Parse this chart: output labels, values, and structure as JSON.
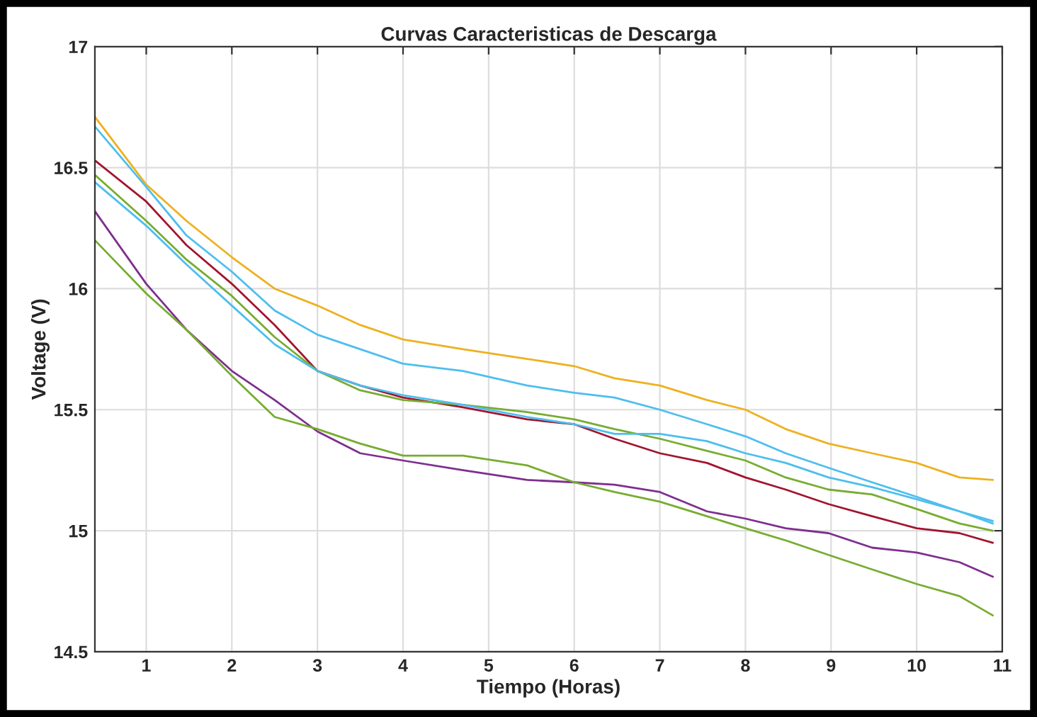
{
  "chart_data": {
    "type": "line",
    "title": "Curvas Caracteristicas de Descarga",
    "xlabel": "Tiempo (Horas)",
    "ylabel": "Voltage (V)",
    "x": [
      0.4,
      1,
      1.47,
      2,
      2.5,
      3,
      3.5,
      4,
      4.7,
      5.45,
      6,
      6.47,
      7,
      7.55,
      8,
      8.47,
      8.97,
      9.48,
      10,
      10.5,
      10.89
    ],
    "series": [
      {
        "color": "#edb120",
        "values": [
          16.71,
          16.43,
          16.28,
          16.13,
          16.0,
          15.93,
          15.85,
          15.79,
          15.75,
          15.71,
          15.68,
          15.63,
          15.6,
          15.54,
          15.5,
          15.42,
          15.36,
          15.32,
          15.28,
          15.22,
          15.21
        ]
      },
      {
        "color": "#4dbeee",
        "values": [
          16.67,
          16.42,
          16.22,
          16.07,
          15.91,
          15.81,
          15.75,
          15.69,
          15.66,
          15.6,
          15.57,
          15.55,
          15.5,
          15.44,
          15.39,
          15.32,
          15.26,
          15.2,
          15.14,
          15.08,
          15.04
        ]
      },
      {
        "color": "#a2142f",
        "values": [
          16.53,
          16.36,
          16.18,
          16.02,
          15.85,
          15.66,
          15.6,
          15.55,
          15.51,
          15.46,
          15.44,
          15.38,
          15.32,
          15.28,
          15.22,
          15.17,
          15.11,
          15.06,
          15.01,
          14.99,
          14.95
        ]
      },
      {
        "color": "#77ac30",
        "values": [
          16.47,
          16.28,
          16.12,
          15.97,
          15.8,
          15.66,
          15.58,
          15.54,
          15.52,
          15.49,
          15.46,
          15.42,
          15.38,
          15.33,
          15.29,
          15.22,
          15.17,
          15.15,
          15.09,
          15.03,
          15.0
        ]
      },
      {
        "color": "#4dbeee",
        "values": [
          16.44,
          16.26,
          16.1,
          15.93,
          15.77,
          15.66,
          15.6,
          15.56,
          15.52,
          15.47,
          15.44,
          15.4,
          15.4,
          15.37,
          15.32,
          15.28,
          15.22,
          15.18,
          15.13,
          15.08,
          15.03
        ]
      },
      {
        "color": "#7e2f8e",
        "values": [
          16.32,
          16.02,
          15.83,
          15.66,
          15.54,
          15.41,
          15.32,
          15.29,
          15.25,
          15.21,
          15.2,
          15.19,
          15.16,
          15.08,
          15.05,
          15.01,
          14.99,
          14.93,
          14.91,
          14.87,
          14.81
        ]
      },
      {
        "color": "#77ac30",
        "values": [
          16.2,
          15.98,
          15.83,
          15.64,
          15.47,
          15.42,
          15.36,
          15.31,
          15.31,
          15.27,
          15.2,
          15.16,
          15.12,
          15.06,
          15.01,
          14.96,
          14.9,
          14.84,
          14.78,
          14.73,
          14.65
        ]
      }
    ],
    "xlim": [
      0.4,
      11
    ],
    "ylim": [
      14.5,
      17
    ],
    "xticks": [
      1,
      2,
      3,
      4,
      5,
      6,
      7,
      8,
      9,
      10,
      11
    ],
    "yticks": [
      14.5,
      15,
      15.5,
      16,
      16.5,
      17
    ],
    "grid": true,
    "marker": "none",
    "line_style": "solid"
  }
}
